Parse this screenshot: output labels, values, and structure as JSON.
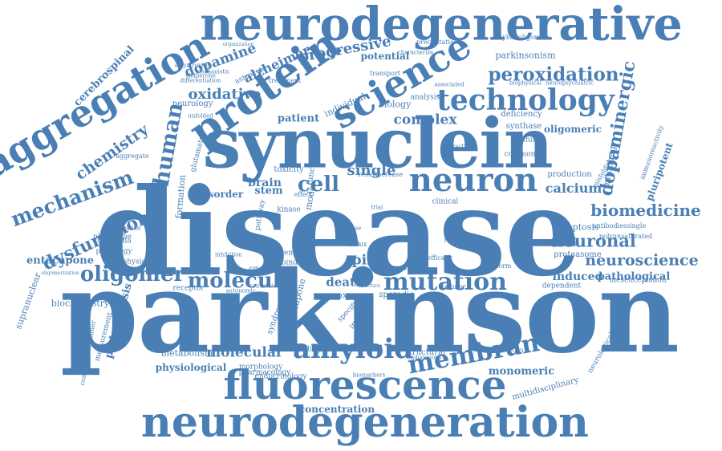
{
  "colors": {
    "word": "#4a7fb5",
    "background": "#ffffff"
  },
  "words": [
    "parkinson",
    "disease",
    "synuclein",
    "neurodegeneration",
    "neurodegenerative",
    "aggregation",
    "protein",
    "science",
    "fluorescence",
    "neuron",
    "technology",
    "amyloid",
    "membrane",
    "mutation",
    "oligomer",
    "molecule",
    "human",
    "cell",
    "single",
    "biomedicine",
    "peroxidation",
    "mechanism",
    "dysfunction",
    "neuronal",
    "neuroscience",
    "chemistry",
    "dopaminergic",
    "progressive",
    "dopamine",
    "alzheimer",
    "oxidative",
    "complex",
    "calcium",
    "induced",
    "pathological",
    "molecular",
    "physiological",
    "metabolism",
    "potential",
    "parkinsonism",
    "cerebrospinal",
    "entacapone",
    "supranuclear",
    "pathogenesis",
    "measurement",
    "biochemistry",
    "proteasome",
    "apoptosis",
    "mitophagy",
    "pluripotent",
    "oligomeric",
    "synthase",
    "deficiency",
    "monomeric",
    "concentration",
    "multidisciplinary",
    "neurological",
    "structural",
    "uncoupling",
    "endocrinology",
    "pharmacology",
    "morphology",
    "patient",
    "individual",
    "biology",
    "analysis",
    "production",
    "disorder",
    "brain",
    "stem",
    "toxicity",
    "formation",
    "neurology",
    "astrocyte",
    "death",
    "pink",
    "oxygen",
    "sporadic",
    "specific",
    "imaging",
    "system",
    "pathology",
    "substantia",
    "phenotype",
    "biophysic",
    "receptor",
    "mesencephalon",
    "dependent",
    "transport",
    "treatment",
    "aggregate",
    "misfolding",
    "immunoreactivity",
    "antibodiessingle",
    "polyunsaturated",
    "platform",
    "conditionsalzheimer",
    "amyloidoligomers",
    "precipitation",
    "organization",
    "characterize",
    "unfolded",
    "glutamate",
    "common",
    "animal",
    "interaction",
    "clinical",
    "kinase",
    "pathway",
    "health",
    "trial",
    "cause",
    "model",
    "function",
    "effect",
    "result",
    "increase",
    "role",
    "mouse",
    "influx",
    "reactive",
    "efficacy",
    "cellular",
    "binding",
    "inhibition",
    "different",
    "multiple",
    "opicapone",
    "syndrome",
    "localization",
    "oligomerization",
    "differentiation",
    "chaperone",
    "amyotrophic",
    "mechanistic",
    "biophysical",
    "neuropsychiatric",
    "autonomic",
    "conversion",
    "structure",
    "associated",
    "endogenous",
    "biomarkers",
    "transduction"
  ]
}
